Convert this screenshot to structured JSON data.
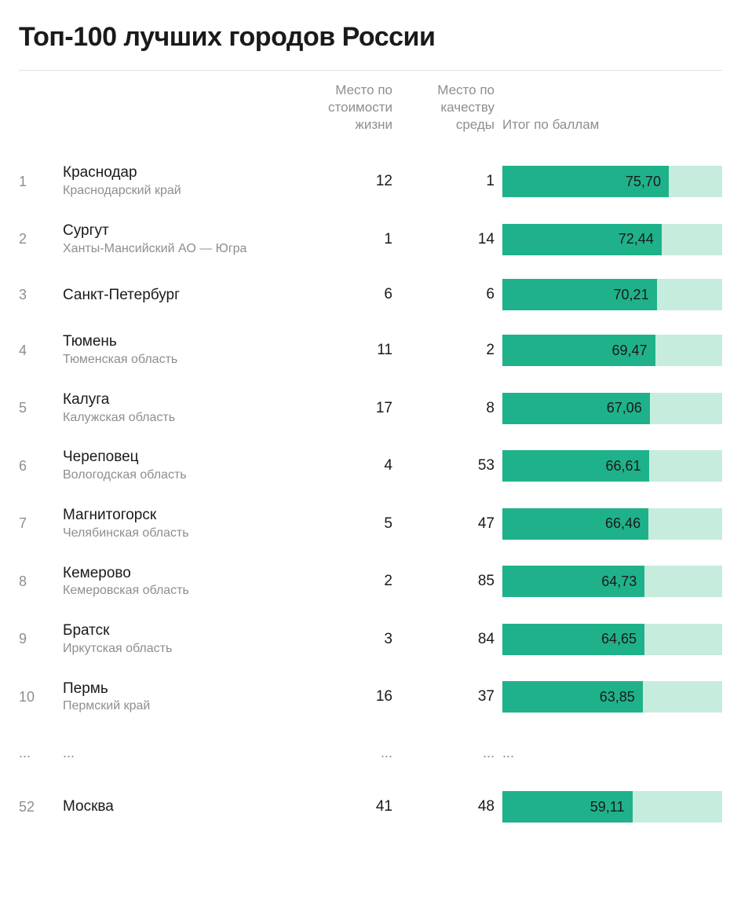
{
  "title": "Топ-100 лучших городов России",
  "columns": {
    "cost": "Место по стоимости жизни",
    "quality": "Место по качеству среды",
    "score": "Итог по баллам"
  },
  "bar": {
    "max": 100,
    "fill_color": "#1fb28a",
    "track_color": "#c6ecdd",
    "text_color": "#1a1a1a"
  },
  "ellipsis": "...",
  "rows": [
    {
      "rank": "1",
      "city": "Краснодар",
      "region": "Краснодарский край",
      "cost": "12",
      "quality": "1",
      "score": "75,70",
      "value": 75.7
    },
    {
      "rank": "2",
      "city": "Сургут",
      "region": "Ханты-Мансийский АО — Югра",
      "cost": "1",
      "quality": "14",
      "score": "72,44",
      "value": 72.44
    },
    {
      "rank": "3",
      "city": "Санкт-Петербург",
      "region": "",
      "cost": "6",
      "quality": "6",
      "score": "70,21",
      "value": 70.21
    },
    {
      "rank": "4",
      "city": "Тюмень",
      "region": "Тюменская область",
      "cost": "11",
      "quality": "2",
      "score": "69,47",
      "value": 69.47
    },
    {
      "rank": "5",
      "city": "Калуга",
      "region": "Калужская область",
      "cost": "17",
      "quality": "8",
      "score": "67,06",
      "value": 67.06
    },
    {
      "rank": "6",
      "city": "Череповец",
      "region": "Вологодская область",
      "cost": "4",
      "quality": "53",
      "score": "66,61",
      "value": 66.61
    },
    {
      "rank": "7",
      "city": "Магнитогорск",
      "region": "Челябинская область",
      "cost": "5",
      "quality": "47",
      "score": "66,46",
      "value": 66.46
    },
    {
      "rank": "8",
      "city": "Кемерово",
      "region": "Кемеровская область",
      "cost": "2",
      "quality": "85",
      "score": "64,73",
      "value": 64.73
    },
    {
      "rank": "9",
      "city": "Братск",
      "region": "Иркутская область",
      "cost": "3",
      "quality": "84",
      "score": "64,65",
      "value": 64.65
    },
    {
      "rank": "10",
      "city": "Пермь",
      "region": "Пермский край",
      "cost": "16",
      "quality": "37",
      "score": "63,85",
      "value": 63.85
    }
  ],
  "extra_row": {
    "rank": "52",
    "city": "Москва",
    "region": "",
    "cost": "41",
    "quality": "48",
    "score": "59,11",
    "value": 59.11
  }
}
